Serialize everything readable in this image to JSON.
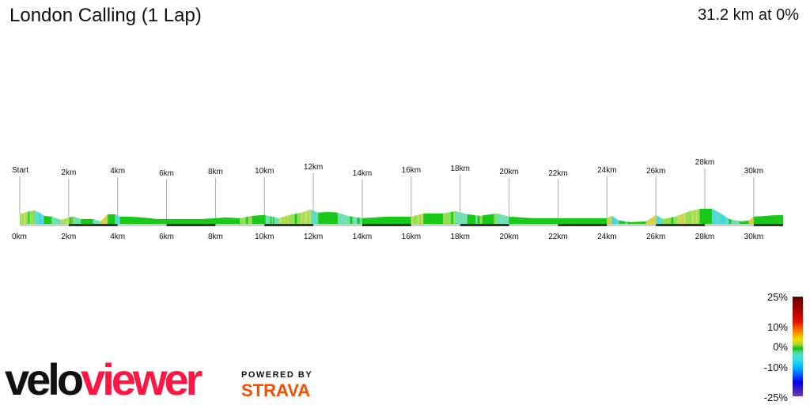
{
  "header": {
    "title": "London Calling (1 Lap)",
    "summary": "31.2 km at 0%"
  },
  "chart_data": {
    "type": "area",
    "title": "London Calling (1 Lap)",
    "xlabel": "",
    "ylabel": "",
    "xlim": [
      0,
      31.2
    ],
    "x_ticks": [
      "0km",
      "2km",
      "4km",
      "6km",
      "8km",
      "10km",
      "12km",
      "14km",
      "16km",
      "18km",
      "20km",
      "22km",
      "24km",
      "26km",
      "28km",
      "30km"
    ],
    "markers": [
      {
        "km": 0,
        "label": "Start"
      },
      {
        "km": 2,
        "label": "2km"
      },
      {
        "km": 4,
        "label": "4km"
      },
      {
        "km": 6,
        "label": "6km"
      },
      {
        "km": 8,
        "label": "8km"
      },
      {
        "km": 10,
        "label": "10km"
      },
      {
        "km": 12,
        "label": "12km"
      },
      {
        "km": 14,
        "label": "14km"
      },
      {
        "km": 16,
        "label": "16km"
      },
      {
        "km": 18,
        "label": "18km"
      },
      {
        "km": 20,
        "label": "20km"
      },
      {
        "km": 22,
        "label": "22km"
      },
      {
        "km": 24,
        "label": "24km"
      },
      {
        "km": 26,
        "label": "26km"
      },
      {
        "km": 28,
        "label": "28km"
      },
      {
        "km": 30,
        "label": "30km"
      }
    ],
    "distance_km": [
      0,
      0.3,
      0.6,
      0.8,
      1.0,
      1.3,
      1.7,
      2.0,
      2.2,
      2.5,
      3.0,
      3.3,
      3.6,
      3.9,
      4.1,
      4.5,
      5.0,
      5.6,
      6,
      7,
      7.5,
      8,
      8.4,
      9,
      9.5,
      10,
      10.3,
      10.6,
      11,
      11.5,
      11.9,
      12.2,
      12.6,
      13,
      13.4,
      14,
      15,
      16,
      16.5,
      17.3,
      17.8,
      18.3,
      18.8,
      19.5,
      20,
      21,
      22,
      23,
      24,
      24.2,
      24.5,
      25,
      25.6,
      26,
      26.3,
      26.8,
      27.3,
      27.8,
      28.3,
      28.6,
      29,
      29.5,
      29.8,
      30,
      31,
      31.2
    ],
    "elevation": [
      36,
      45,
      51,
      42,
      30,
      27,
      15,
      24,
      27,
      18,
      18,
      9,
      36,
      36,
      27,
      27,
      24,
      18,
      18,
      18,
      18,
      21,
      24,
      21,
      30,
      33,
      27,
      21,
      33,
      42,
      54,
      42,
      45,
      42,
      30,
      21,
      27,
      27,
      39,
      39,
      48,
      36,
      30,
      39,
      27,
      21,
      21,
      21,
      21,
      30,
      12,
      6,
      9,
      33,
      18,
      27,
      45,
      57,
      57,
      42,
      18,
      9,
      12,
      27,
      33,
      33
    ],
    "gradient_legend": {
      "labels": [
        "25%",
        "10%",
        "0%",
        "-10%",
        "-25%"
      ],
      "colors": [
        "#5a0000",
        "#e01000",
        "#e8e000",
        "#10c010",
        "#40e0e0",
        "#0060ff",
        "#7040a0"
      ]
    }
  },
  "branding": {
    "velo": "velo",
    "viewer": "viewer",
    "powered": "POWERED BY",
    "strava": "STRAVA"
  }
}
